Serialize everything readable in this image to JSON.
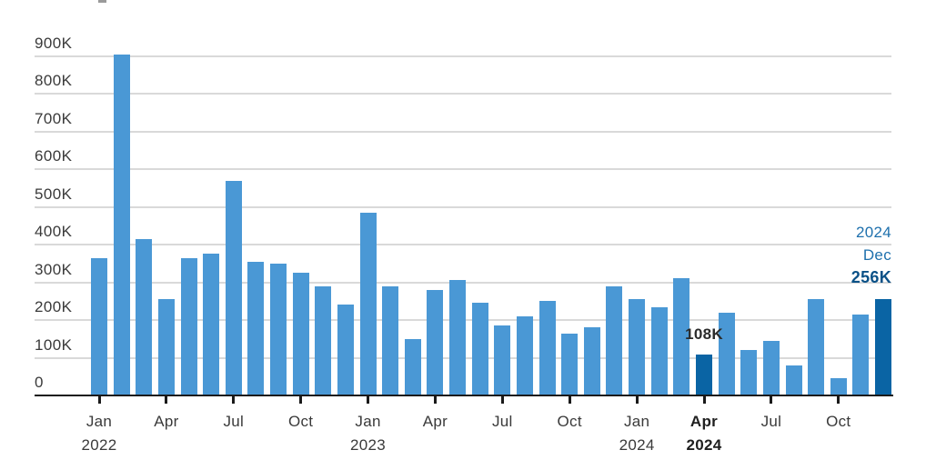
{
  "chart_data": {
    "type": "bar",
    "title": "",
    "categories": [
      "Jan 2022",
      "Feb 2022",
      "Mar 2022",
      "Apr 2022",
      "May 2022",
      "Jun 2022",
      "Jul 2022",
      "Aug 2022",
      "Sep 2022",
      "Oct 2022",
      "Nov 2022",
      "Dec 2022",
      "Jan 2023",
      "Feb 2023",
      "Mar 2023",
      "Apr 2023",
      "May 2023",
      "Jun 2023",
      "Jul 2023",
      "Aug 2023",
      "Sep 2023",
      "Oct 2023",
      "Nov 2023",
      "Dec 2023",
      "Jan 2024",
      "Feb 2024",
      "Mar 2024",
      "Apr 2024",
      "May 2024",
      "Jun 2024",
      "Jul 2024",
      "Aug 2024",
      "Sep 2024",
      "Oct 2024",
      "Nov 2024",
      "Dec 2024"
    ],
    "values": [
      365,
      905,
      415,
      255,
      365,
      375,
      570,
      355,
      350,
      325,
      290,
      240,
      485,
      290,
      150,
      280,
      305,
      245,
      185,
      210,
      250,
      165,
      180,
      290,
      255,
      235,
      310,
      108,
      220,
      120,
      145,
      80,
      255,
      45,
      215,
      256
    ],
    "value_unit": "thousands",
    "value_suffix": "K",
    "ylim": [
      0,
      900
    ],
    "grid": true,
    "legend": null,
    "yticks": [
      {
        "value": 900,
        "label": "900K"
      },
      {
        "value": 800,
        "label": "800K"
      },
      {
        "value": 700,
        "label": "700K"
      },
      {
        "value": 600,
        "label": "600K"
      },
      {
        "value": 500,
        "label": "500K"
      },
      {
        "value": 400,
        "label": "400K"
      },
      {
        "value": 300,
        "label": "300K"
      },
      {
        "value": 200,
        "label": "200K"
      },
      {
        "value": 100,
        "label": "100K"
      },
      {
        "value": 0,
        "label": "0"
      }
    ],
    "xticks": [
      {
        "index": 0,
        "line1": "Jan",
        "line2": "2022",
        "bold": false
      },
      {
        "index": 3,
        "line1": "Apr",
        "line2": "",
        "bold": false
      },
      {
        "index": 6,
        "line1": "Jul",
        "line2": "",
        "bold": false
      },
      {
        "index": 9,
        "line1": "Oct",
        "line2": "",
        "bold": false
      },
      {
        "index": 12,
        "line1": "Jan",
        "line2": "2023",
        "bold": false
      },
      {
        "index": 15,
        "line1": "Apr",
        "line2": "",
        "bold": false
      },
      {
        "index": 18,
        "line1": "Jul",
        "line2": "",
        "bold": false
      },
      {
        "index": 21,
        "line1": "Oct",
        "line2": "",
        "bold": false
      },
      {
        "index": 24,
        "line1": "Jan",
        "line2": "2024",
        "bold": false
      },
      {
        "index": 27,
        "line1": "Apr",
        "line2": "2024",
        "bold": true
      },
      {
        "index": 30,
        "line1": "Jul",
        "line2": "",
        "bold": false
      },
      {
        "index": 33,
        "line1": "Oct",
        "line2": "",
        "bold": false
      }
    ],
    "highlighted_indices": [
      27,
      35
    ],
    "annotations": {
      "bar_label": {
        "index": 27,
        "text": "108K"
      },
      "callout": {
        "index": 35,
        "lines": [
          {
            "text": "2024",
            "style": "blue"
          },
          {
            "text": "Dec",
            "style": "blue"
          },
          {
            "text": "256K",
            "style": "blue-bold"
          }
        ]
      }
    }
  },
  "colors": {
    "bar": "#4a98d5",
    "bar_highlight": "#0a64a4",
    "gridline": "#d9d9d9",
    "axis": "#1a1a1a",
    "tick_text": "#3a3a3a",
    "tick_text_bold": "#1f1f1f",
    "ylabel_text": "#3a3a3a",
    "bar_label_text": "#2b2b2b",
    "callout_blue": "#1e70ad",
    "callout_dark_blue": "#0b5187",
    "background": "#ffffff"
  }
}
